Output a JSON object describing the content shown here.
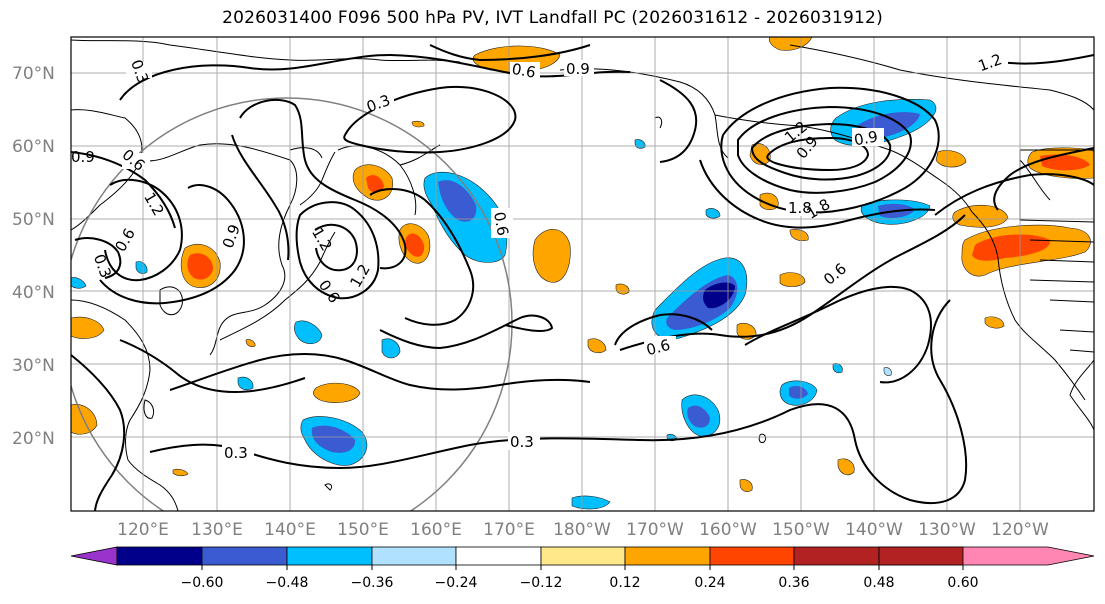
{
  "title": "2026031400 F096 500 hPa PV, IVT Landfall PC (2026031612 - 2026031912)",
  "map": {
    "lat_labels": [
      "70°N",
      "60°N",
      "50°N",
      "40°N",
      "30°N",
      "20°N"
    ],
    "lon_labels": [
      "120°E",
      "130°E",
      "140°E",
      "150°E",
      "160°E",
      "170°E",
      "180°W",
      "170°W",
      "160°W",
      "150°W",
      "140°W",
      "130°W",
      "120°W"
    ],
    "contour_labels": [
      "0.3",
      "0.6",
      "0.9",
      "1.2",
      "0.3",
      "0.6",
      "0.9",
      "1.2",
      "1.8",
      "0.6",
      "0.3",
      "0.3",
      "0.6",
      "0.6",
      "0.9",
      "1.2",
      "0.3",
      "0.6",
      "0.9",
      "1.2",
      "0.6",
      "1.2",
      "0.9",
      "1.8"
    ]
  },
  "colorbar": {
    "ticks": [
      "−0.60",
      "−0.48",
      "−0.36",
      "−0.24",
      "−0.12",
      "0.12",
      "0.24",
      "0.36",
      "0.48",
      "0.60"
    ],
    "colors": [
      "#9933cc",
      "#00008b",
      "#3a5bd1",
      "#00bfff",
      "#b0e2ff",
      "#ffffff",
      "#ffe88a",
      "#ffa500",
      "#ff4500",
      "#b22222",
      "#ff85b3"
    ]
  }
}
